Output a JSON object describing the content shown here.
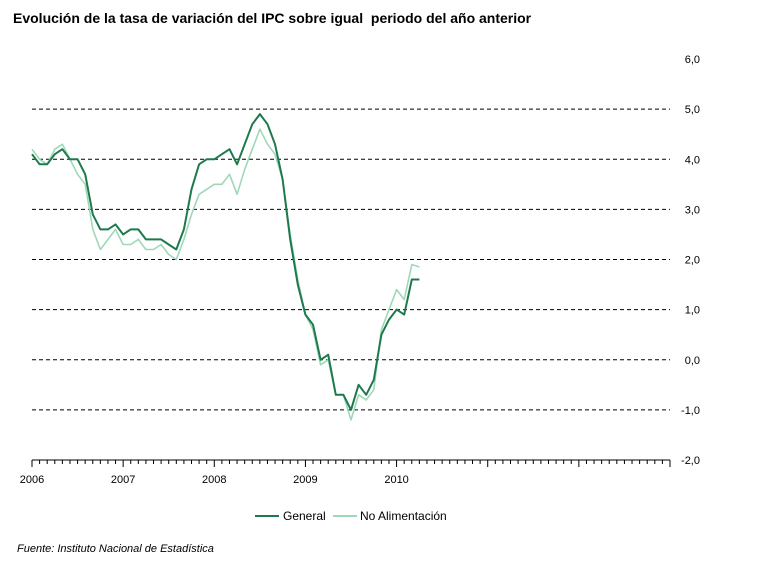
{
  "title": "Evolución de la tasa de variación del IPC sobre igual  periodo del año anterior",
  "source": "Fuente: Instituto Nacional de Estadística",
  "chart_data": {
    "type": "line",
    "title": "Evolución de la tasa de variación del IPC sobre igual  periodo del año anterior",
    "xlabel": "",
    "ylabel": "",
    "ylim": [
      -2.0,
      6.0
    ],
    "y_ticks": [
      6.0,
      5.0,
      4.0,
      3.0,
      2.0,
      1.0,
      0.0,
      -1.0,
      -2.0
    ],
    "y_tick_labels": [
      "6,0",
      "5,0",
      "4,0",
      "3,0",
      "2,0",
      "1,0",
      "0,0",
      "-1,0",
      "-2,0"
    ],
    "x_tick_labels": [
      "2006",
      "2007",
      "2008",
      "2009",
      "2010"
    ],
    "x_start": "2006-01",
    "x_end": "2012-12",
    "grid": "horizontal dashed",
    "legend_position": "bottom",
    "x": [
      "2006-01",
      "2006-02",
      "2006-03",
      "2006-04",
      "2006-05",
      "2006-06",
      "2006-07",
      "2006-08",
      "2006-09",
      "2006-10",
      "2006-11",
      "2006-12",
      "2007-01",
      "2007-02",
      "2007-03",
      "2007-04",
      "2007-05",
      "2007-06",
      "2007-07",
      "2007-08",
      "2007-09",
      "2007-10",
      "2007-11",
      "2007-12",
      "2008-01",
      "2008-02",
      "2008-03",
      "2008-04",
      "2008-05",
      "2008-06",
      "2008-07",
      "2008-08",
      "2008-09",
      "2008-10",
      "2008-11",
      "2008-12",
      "2009-01",
      "2009-02",
      "2009-03",
      "2009-04",
      "2009-05",
      "2009-06",
      "2009-07",
      "2009-08",
      "2009-09",
      "2009-10",
      "2009-11",
      "2009-12",
      "2010-01",
      "2010-02",
      "2010-03",
      "2010-04"
    ],
    "series": [
      {
        "name": "General",
        "color": "#1e7a4c",
        "values": [
          4.1,
          3.9,
          3.9,
          4.1,
          4.2,
          4.0,
          4.0,
          3.7,
          2.9,
          2.6,
          2.6,
          2.7,
          2.5,
          2.6,
          2.6,
          2.4,
          2.4,
          2.4,
          2.3,
          2.2,
          2.6,
          3.4,
          3.9,
          4.0,
          4.0,
          4.1,
          4.2,
          3.9,
          4.3,
          4.7,
          4.9,
          4.7,
          4.3,
          3.6,
          2.4,
          1.5,
          0.9,
          0.7,
          0.0,
          0.1,
          -0.7,
          -0.7,
          -1.0,
          -0.5,
          -0.7,
          -0.4,
          0.5,
          0.8,
          1.0,
          0.9,
          1.6,
          1.6
        ]
      },
      {
        "name": "No Alimentación",
        "color": "#9ed8b7",
        "values": [
          4.2,
          4.0,
          3.9,
          4.2,
          4.3,
          4.0,
          3.7,
          3.5,
          2.6,
          2.2,
          2.4,
          2.6,
          2.3,
          2.3,
          2.4,
          2.2,
          2.2,
          2.3,
          2.1,
          2.0,
          2.4,
          2.9,
          3.3,
          3.4,
          3.5,
          3.5,
          3.7,
          3.3,
          3.8,
          4.2,
          4.6,
          4.3,
          4.1,
          3.6,
          2.5,
          1.6,
          0.9,
          0.6,
          -0.1,
          0.0,
          -0.7,
          -0.7,
          -1.2,
          -0.7,
          -0.8,
          -0.6,
          0.6,
          1.0,
          1.4,
          1.2,
          1.9,
          1.85
        ]
      }
    ]
  }
}
